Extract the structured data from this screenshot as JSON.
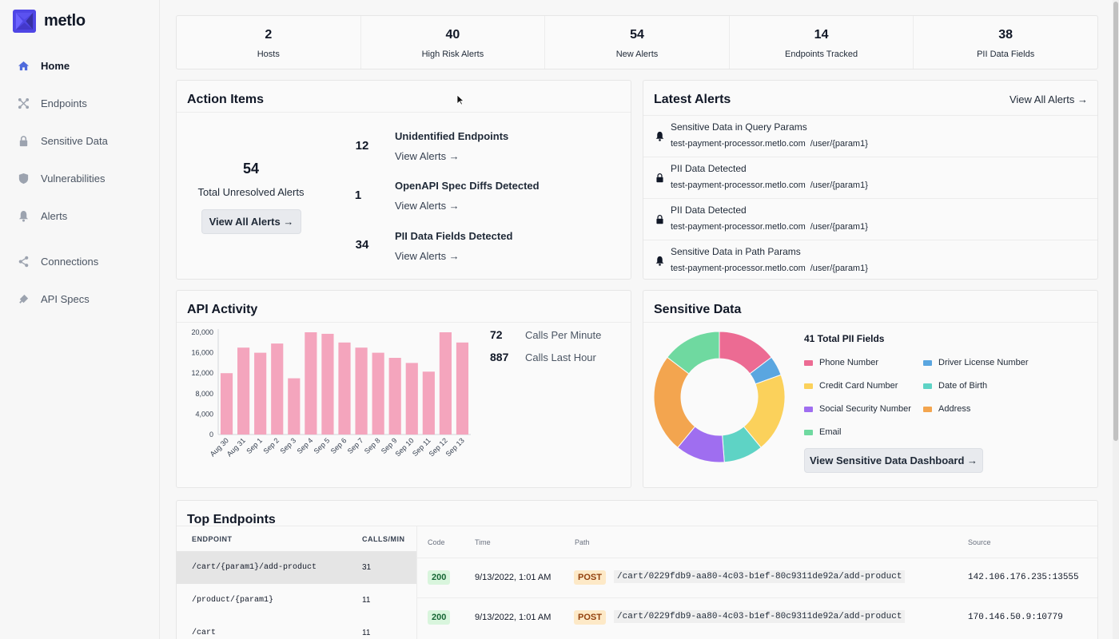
{
  "brand": {
    "name": "metlo",
    "accent": "#4f46e5"
  },
  "sidebar": {
    "items": [
      {
        "label": "Home",
        "icon": "home-icon",
        "active": true
      },
      {
        "label": "Endpoints",
        "icon": "endpoints-icon"
      },
      {
        "label": "Sensitive Data",
        "icon": "lock-icon"
      },
      {
        "label": "Vulnerabilities",
        "icon": "shield-icon"
      },
      {
        "label": "Alerts",
        "icon": "bell-icon"
      },
      {
        "label": "Connections",
        "icon": "share-icon"
      },
      {
        "label": "API Specs",
        "icon": "api-specs-icon"
      }
    ]
  },
  "stats": [
    {
      "value": "2",
      "label": "Hosts"
    },
    {
      "value": "40",
      "label": "High Risk Alerts"
    },
    {
      "value": "54",
      "label": "New Alerts"
    },
    {
      "value": "14",
      "label": "Endpoints Tracked"
    },
    {
      "value": "38",
      "label": "PII Data Fields"
    }
  ],
  "action_items": {
    "title": "Action Items",
    "total_value": "54",
    "total_label": "Total Unresolved Alerts",
    "view_all_label": "View All Alerts →",
    "items": [
      {
        "count": "12",
        "title": "Unidentified Endpoints",
        "link": "View Alerts →"
      },
      {
        "count": "1",
        "title": "OpenAPI Spec Diffs Detected",
        "link": "View Alerts →"
      },
      {
        "count": "34",
        "title": "PII Data Fields Detected",
        "link": "View Alerts →"
      }
    ]
  },
  "latest_alerts": {
    "title": "Latest Alerts",
    "view_all_label": "View All Alerts →",
    "items": [
      {
        "title": "Sensitive Data in Query Params",
        "host": "test-payment-processor.metlo.com",
        "path": "/user/{param1}",
        "icon": "bell-icon"
      },
      {
        "title": "PII Data Detected",
        "host": "test-payment-processor.metlo.com",
        "path": "/user/{param1}",
        "icon": "lock-icon"
      },
      {
        "title": "PII Data Detected",
        "host": "test-payment-processor.metlo.com",
        "path": "/user/{param1}",
        "icon": "lock-icon"
      },
      {
        "title": "Sensitive Data in Path Params",
        "host": "test-payment-processor.metlo.com",
        "path": "/user/{param1}",
        "icon": "bell-icon"
      }
    ]
  },
  "api_activity": {
    "title": "API Activity",
    "metrics": [
      {
        "value": "72",
        "label": "Calls Per Minute"
      },
      {
        "value": "887",
        "label": "Calls Last Hour"
      }
    ]
  },
  "sensitive_data": {
    "title": "Sensitive Data",
    "total_label": "41 Total PII Fields",
    "button_label": "View Sensitive Data Dashboard →",
    "legend": [
      {
        "label": "Phone Number",
        "color": "#ec6b93"
      },
      {
        "label": "Driver License Number",
        "color": "#5aa6e0"
      },
      {
        "label": "Credit Card Number",
        "color": "#fbd15b"
      },
      {
        "label": "Date of Birth",
        "color": "#5ed3c5"
      },
      {
        "label": "Social Security Number",
        "color": "#9f6ef0"
      },
      {
        "label": "Address",
        "color": "#f3a54f"
      },
      {
        "label": "Email",
        "color": "#6fd9a0"
      }
    ]
  },
  "chart_data": [
    {
      "type": "bar",
      "title": "API Activity",
      "categories": [
        "Aug 30",
        "Aug 31",
        "Sep 1",
        "Sep 2",
        "Sep 3",
        "Sep 4",
        "Sep 5",
        "Sep 6",
        "Sep 7",
        "Sep 8",
        "Sep 9",
        "Sep 10",
        "Sep 11",
        "Sep 12",
        "Sep 13"
      ],
      "values": [
        12000,
        17000,
        16000,
        17800,
        11000,
        20000,
        19700,
        18000,
        17000,
        16000,
        15000,
        14000,
        12300,
        20000,
        18000
      ],
      "ylim": [
        0,
        20000
      ],
      "yticks": [
        "0",
        "4,000",
        "8,000",
        "12,000",
        "16,000",
        "20,000"
      ],
      "ytick_values": [
        0,
        4000,
        8000,
        12000,
        16000,
        20000
      ],
      "color": "#f4a5bd"
    },
    {
      "type": "pie",
      "title": "41 Total PII Fields",
      "labels": [
        "Phone Number",
        "Driver License Number",
        "Credit Card Number",
        "Date of Birth",
        "Social Security Number",
        "Address",
        "Email"
      ],
      "values": [
        6,
        2,
        8,
        4,
        5,
        10,
        6
      ],
      "colors": [
        "#ec6b93",
        "#5aa6e0",
        "#fbd15b",
        "#5ed3c5",
        "#9f6ef0",
        "#f3a54f",
        "#6fd9a0"
      ]
    }
  ],
  "top_endpoints": {
    "title": "Top Endpoints",
    "col_endpoint": "ENDPOINT",
    "col_calls": "CALLS/MIN",
    "endpoints": [
      {
        "path": "/cart/{param1}/add-product",
        "calls": "31"
      },
      {
        "path": "/product/{param1}",
        "calls": "11"
      },
      {
        "path": "/cart",
        "calls": "11"
      }
    ],
    "req_headers": {
      "code": "Code",
      "time": "Time",
      "path": "Path",
      "source": "Source"
    },
    "requests": [
      {
        "code": "200",
        "time": "9/13/2022, 1:01 AM",
        "method": "POST",
        "path": "/cart/0229fdb9-aa80-4c03-b1ef-80c9311de92a/add-product",
        "source": "142.106.176.235:13555"
      },
      {
        "code": "200",
        "time": "9/13/2022, 1:01 AM",
        "method": "POST",
        "path": "/cart/0229fdb9-aa80-4c03-b1ef-80c9311de92a/add-product",
        "source": "170.146.50.9:10779"
      }
    ]
  }
}
